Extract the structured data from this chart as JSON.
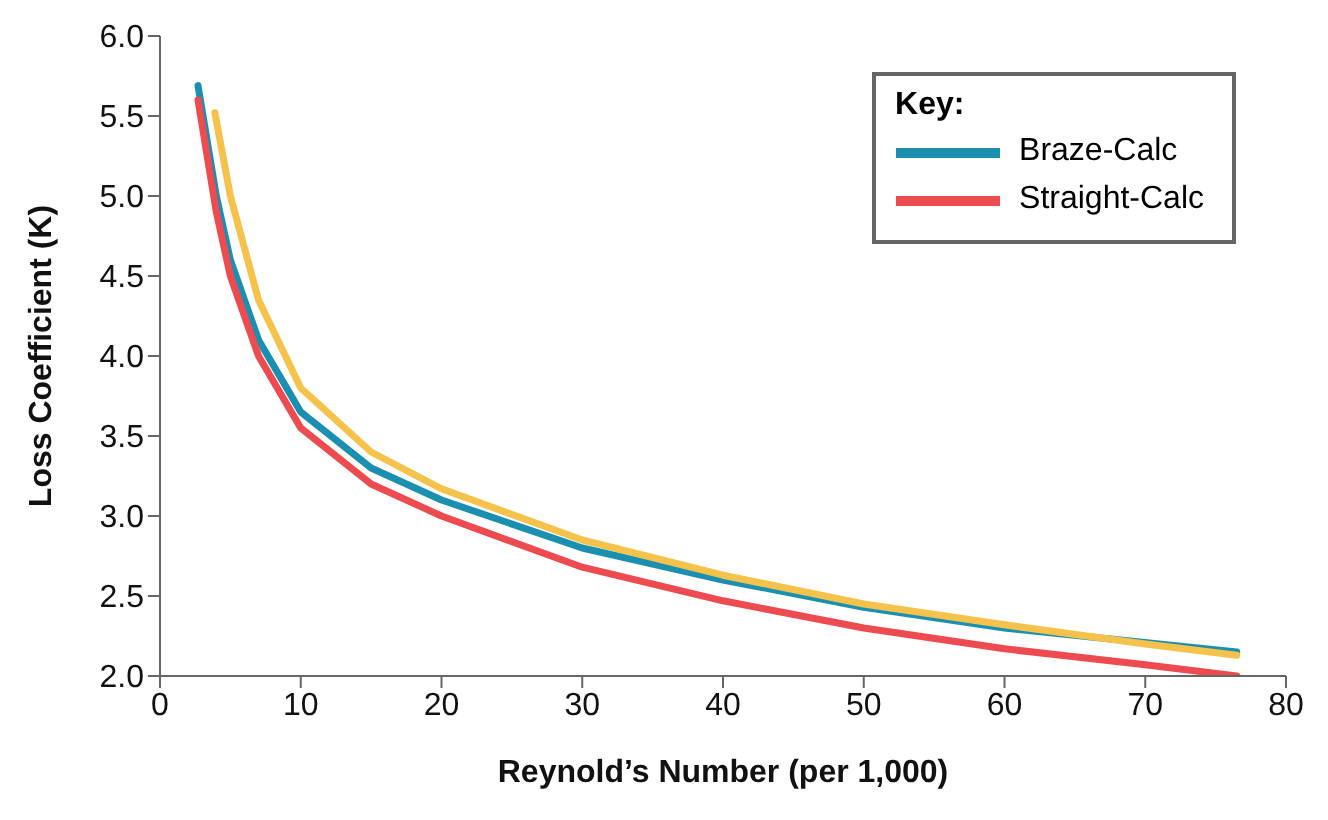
{
  "chart_data": {
    "type": "line",
    "xlabel": "Reynold’s Number (per 1,000)",
    "ylabel": "Loss Coefficient (K)",
    "legend_title": "Key:",
    "legend": "top right",
    "grid": false,
    "marker": "none",
    "line_style": "solid",
    "xlim": [
      0,
      80
    ],
    "xticks": [
      0,
      10,
      20,
      30,
      40,
      50,
      60,
      70,
      80
    ],
    "ylim": [
      2,
      6
    ],
    "yticks": [
      {
        "value": 2,
        "label": "2.0"
      },
      2.5,
      {
        "value": 3,
        "label": "3.0"
      },
      3.5,
      {
        "value": 4,
        "label": "4.0"
      },
      4.5,
      {
        "value": 5,
        "label": "5.0"
      },
      5.5,
      {
        "value": 6,
        "label": "6.0"
      }
    ],
    "series": [
      {
        "name": "Braze-Calc",
        "color": "#1a8fb0",
        "x": [
          2.7,
          4,
          5,
          7,
          10,
          15,
          20,
          30,
          40,
          50,
          60,
          76.5
        ],
        "values": [
          5.69,
          5.0,
          4.6,
          4.1,
          3.65,
          3.3,
          3.1,
          2.8,
          2.6,
          2.43,
          2.3,
          2.15
        ]
      },
      {
        "color": "#f5c24c",
        "x": [
          3.9,
          5,
          7,
          10,
          15,
          20,
          30,
          40,
          50,
          60,
          70,
          76.5
        ],
        "values": [
          5.52,
          5.0,
          4.35,
          3.8,
          3.4,
          3.17,
          2.85,
          2.63,
          2.45,
          2.32,
          2.2,
          2.13
        ]
      },
      {
        "name": "Straight-Calc",
        "color": "#ee4b50",
        "x": [
          2.7,
          4,
          5,
          7,
          10,
          15,
          20,
          30,
          40,
          50,
          60,
          70,
          76.5
        ],
        "values": [
          5.6,
          4.9,
          4.5,
          4.0,
          3.55,
          3.2,
          3.0,
          2.68,
          2.47,
          2.3,
          2.17,
          2.07,
          2.0
        ]
      }
    ]
  }
}
